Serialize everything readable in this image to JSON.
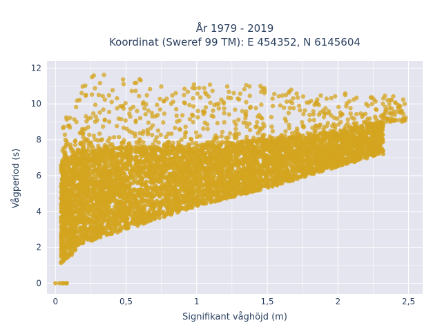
{
  "chart_data": {
    "type": "scatter",
    "title": "År 1979 - 2019",
    "subtitle": "Koordinat (Sweref 99 TM): E 454352, N 6145604",
    "xlabel": "Signifikant våghöjd (m)",
    "ylabel": "Vågperiod (s)",
    "xlim": [
      -0.06,
      2.6
    ],
    "ylim": [
      -0.6,
      12.4
    ],
    "x_ticks": [
      0,
      0.5,
      1,
      1.5,
      2,
      2.5
    ],
    "x_tick_labels": [
      "0",
      "0,5",
      "1",
      "1,5",
      "2",
      "2,5"
    ],
    "y_ticks": [
      0,
      2,
      4,
      6,
      8,
      10,
      12
    ],
    "y_tick_labels": [
      "0",
      "2",
      "4",
      "6",
      "8",
      "10",
      "12"
    ],
    "grid": true,
    "legend": "none",
    "marker_color": "#D4A420",
    "plot_background": "#E5E5EF",
    "grid_color": "#ffffff",
    "point_cloud": {
      "description_only": false,
      "lower_bound": [
        [
          0.05,
          1.1
        ],
        [
          0.2,
          2.2
        ],
        [
          0.5,
          3.0
        ],
        [
          1.0,
          4.3
        ],
        [
          1.5,
          5.3
        ],
        [
          2.0,
          6.5
        ],
        [
          2.3,
          7.2
        ]
      ],
      "upper_bound_dense": [
        [
          0.05,
          6.8
        ],
        [
          0.2,
          7.4
        ],
        [
          0.5,
          7.6
        ],
        [
          1.0,
          7.7
        ],
        [
          1.5,
          8.0
        ],
        [
          2.0,
          8.5
        ],
        [
          2.3,
          9.0
        ]
      ],
      "sparse_upper": [
        [
          0.05,
          9.0
        ],
        [
          0.25,
          11.9
        ],
        [
          0.5,
          11.4
        ],
        [
          1.0,
          11.4
        ],
        [
          1.5,
          11.0
        ],
        [
          2.0,
          10.6
        ],
        [
          2.48,
          10.5
        ]
      ],
      "zero_points": [
        [
          0.0,
          0.0
        ],
        [
          0.03,
          0.0
        ],
        [
          0.05,
          0.0
        ],
        [
          0.06,
          0.0
        ],
        [
          0.08,
          0.0
        ],
        [
          0.08,
          0.0
        ]
      ]
    }
  }
}
